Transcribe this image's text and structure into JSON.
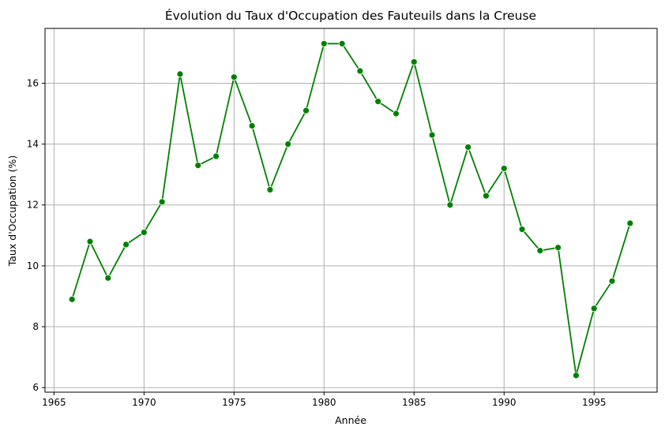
{
  "chart_data": {
    "type": "line",
    "title": "Évolution du Taux d'Occupation des Fauteuils dans la Creuse",
    "xlabel": "Année",
    "ylabel": "Taux d'Occupation (%)",
    "xlim": [
      1964.5,
      1998.5
    ],
    "ylim": [
      5.85,
      17.8
    ],
    "xticks": [
      1965,
      1970,
      1975,
      1980,
      1985,
      1990,
      1995
    ],
    "yticks": [
      6,
      8,
      10,
      12,
      14,
      16
    ],
    "grid": true,
    "series": [
      {
        "color": "#008000",
        "marker": "circle",
        "x": [
          1966,
          1967,
          1968,
          1969,
          1970,
          1971,
          1972,
          1973,
          1974,
          1975,
          1976,
          1977,
          1978,
          1979,
          1980,
          1981,
          1982,
          1983,
          1984,
          1985,
          1986,
          1987,
          1988,
          1989,
          1990,
          1991,
          1992,
          1993,
          1994,
          1995,
          1996,
          1997
        ],
        "y": [
          8.9,
          10.8,
          9.6,
          10.7,
          11.1,
          12.1,
          16.3,
          13.3,
          13.6,
          16.2,
          14.6,
          12.5,
          14.0,
          15.1,
          17.3,
          17.3,
          16.4,
          15.4,
          15.0,
          16.7,
          14.3,
          12.0,
          13.9,
          12.3,
          13.2,
          11.2,
          10.5,
          10.6,
          6.4,
          8.6,
          9.5,
          11.4
        ]
      }
    ]
  },
  "style": {
    "grid_color": "#b0b0b0",
    "axis_color": "#000000",
    "background": "#ffffff"
  }
}
